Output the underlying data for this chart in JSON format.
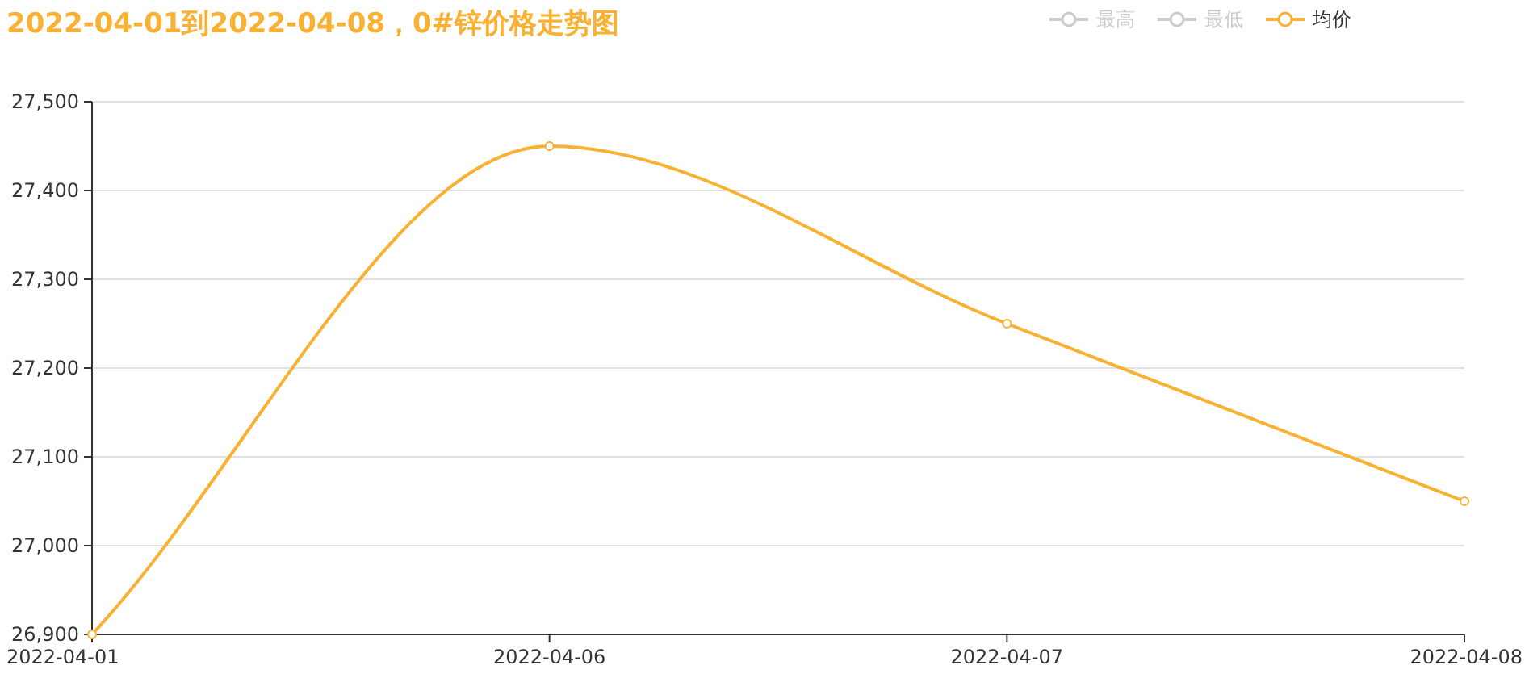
{
  "chart_data": {
    "type": "line",
    "title": "2022-04-01到2022-04-08，0#锌价格走势图",
    "categories": [
      "2022-04-01",
      "2022-04-06",
      "2022-04-07",
      "2022-04-08"
    ],
    "series": [
      {
        "name": "最高",
        "color": "#cccccc",
        "values": [
          null,
          null,
          null,
          null
        ]
      },
      {
        "name": "最低",
        "color": "#cccccc",
        "values": [
          null,
          null,
          null,
          null
        ]
      },
      {
        "name": "均价",
        "color": "#f8b133",
        "values": [
          26900,
          27450,
          27250,
          27050
        ]
      }
    ],
    "ylim": [
      26900,
      27500
    ],
    "yticks": [
      {
        "value": 26900,
        "label": "26,900"
      },
      {
        "value": 27000,
        "label": "27,000"
      },
      {
        "value": 27100,
        "label": "27,100"
      },
      {
        "value": 27200,
        "label": "27,200"
      },
      {
        "value": 27300,
        "label": "27,300"
      },
      {
        "value": 27400,
        "label": "27,400"
      },
      {
        "value": 27500,
        "label": "27,500"
      }
    ],
    "grid": "y",
    "legend": "top right",
    "marker": "circle"
  }
}
